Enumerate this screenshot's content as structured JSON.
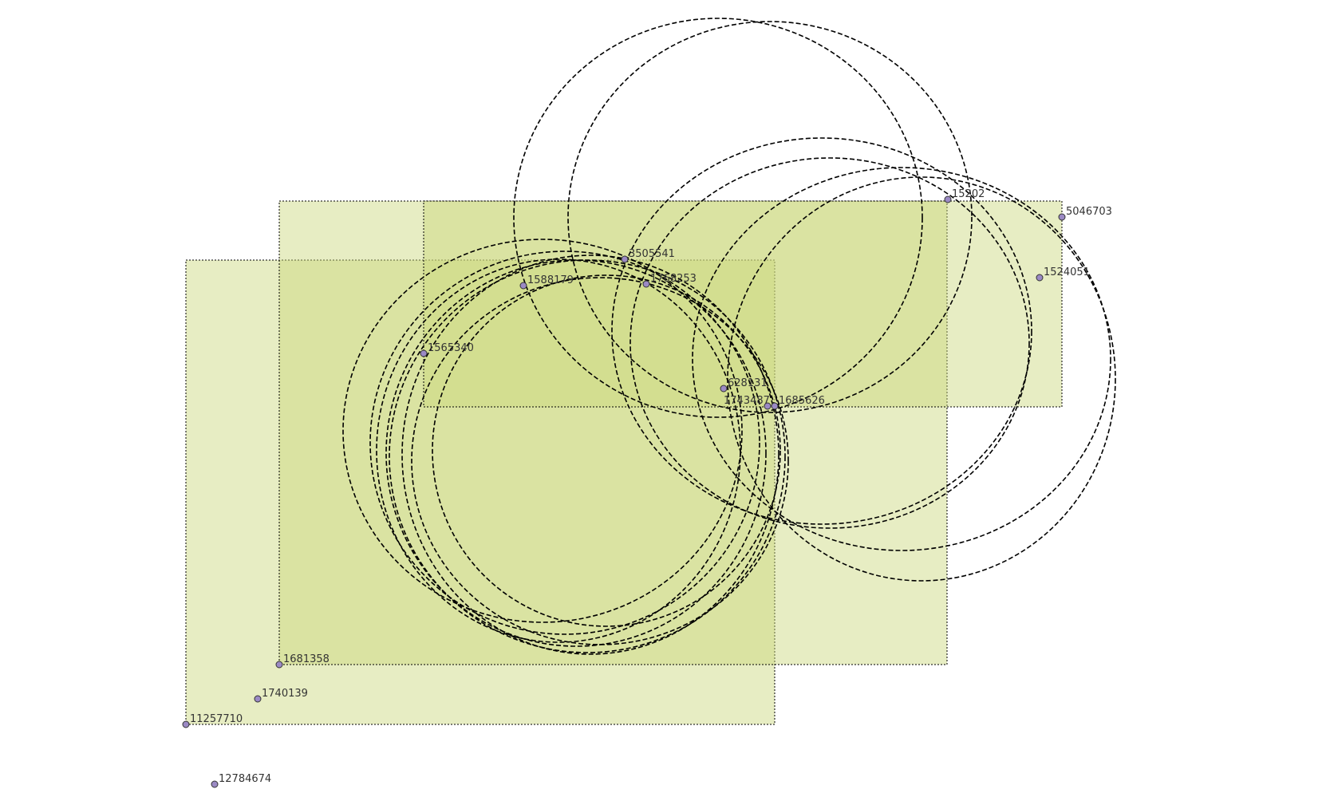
{
  "map": {
    "point_color": "#9b8ac4",
    "rect_fill": "#c9d87a",
    "points": [
      {
        "id": "15202"
      },
      {
        "id": "5046703"
      },
      {
        "id": "1524051"
      },
      {
        "id": "3505541"
      },
      {
        "id": "1588179"
      },
      {
        "id": "1768253"
      },
      {
        "id": "1565340"
      },
      {
        "id": "628131"
      },
      {
        "id": "1743487"
      },
      {
        "id": "1685626"
      },
      {
        "id": "1681358"
      },
      {
        "id": "1740139"
      },
      {
        "id": "11257710"
      },
      {
        "id": "12784674"
      }
    ]
  }
}
